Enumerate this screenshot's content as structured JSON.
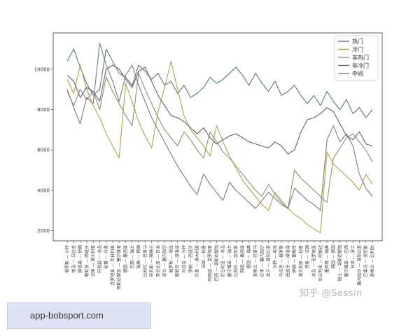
{
  "chart_data": {
    "type": "line",
    "ylim": [
      1500,
      11800
    ],
    "yticks": [
      2000,
      4000,
      6000,
      8000,
      10000
    ],
    "legend_position": "top-right",
    "grid": false,
    "categories": [
      "俄罗斯 — 沙特",
      "埃及 — 乌拉圭",
      "摩洛哥 — 伊朗",
      "葡萄牙 — 西班牙",
      "法国 — 澳大利亚",
      "阿根廷 — 冰岛",
      "秘鲁 — 丹麦",
      "克罗地亚 — 尼日利亚",
      "哥斯达黎加 — 塞尔维亚",
      "德国 — 墨西哥",
      "巴西 — 瑞士",
      "瑞典 — 韩国",
      "比利时 — 巴拿马",
      "突尼斯 — 英格兰",
      "哥伦比亚 — 日本",
      "波兰 — 塞内加尔",
      "俄罗斯 — 埃及",
      "葡萄牙 — 摩洛哥",
      "乌拉圭 — 沙特",
      "伊朗 — 西班牙",
      "丹麦 — 澳大利亚",
      "法国 — 秘鲁",
      "阿根廷 — 克罗地亚",
      "巴西 — 哥斯达黎加",
      "尼日利亚 — 冰岛",
      "塞尔维亚 — 瑞士",
      "比利时 — 突尼斯",
      "韩国 — 墨西哥",
      "德国 — 瑞典",
      "英格兰 — 巴拿马",
      "日本 — 塞内加尔",
      "波兰 — 哥伦比亚",
      "沙特 — 埃及",
      "乌拉圭 — 俄罗斯",
      "西班牙 — 摩洛哥",
      "伊朗 — 葡萄牙",
      "澳大利亚 — 秘鲁",
      "丹麦 — 法国",
      "冰岛 — 克罗地亚",
      "尼日利亚 — 阿根廷",
      "墨西哥 — 瑞典",
      "韩国 — 德国",
      "瑞士 — 哥斯达黎加",
      "塞尔维亚 — 巴西",
      "日本 — 波兰",
      "塞内加尔 — 哥伦比亚",
      "巴拿马 — 突尼斯",
      "英格兰 — 比利时"
    ],
    "series": [
      {
        "name": "热门",
        "color": "#5a7a78",
        "values": [
          10400,
          11000,
          10100,
          9300,
          8700,
          9000,
          11000,
          10400,
          9800,
          9600,
          9200,
          10200,
          9900,
          9500,
          9800,
          9200,
          9400,
          8800,
          9200,
          8600,
          8800,
          9100,
          9600,
          9300,
          9500,
          9800,
          10100,
          9700,
          9200,
          9800,
          9300,
          8900,
          9400,
          8700,
          8900,
          9200,
          8700,
          8300,
          8700,
          8200,
          8900,
          8400,
          8000,
          8500,
          7800,
          8100,
          7600,
          8000
        ]
      },
      {
        "name": "冷门",
        "color": "#b3a14a",
        "values": [
          9500,
          8800,
          10200,
          9000,
          8200,
          7600,
          6800,
          6200,
          5600,
          9300,
          8400,
          7400,
          6700,
          6100,
          7900,
          9100,
          10400,
          9000,
          7700,
          7000,
          6600,
          6200,
          5700,
          7200,
          6400,
          5700,
          5100,
          4500,
          4100,
          3700,
          3300,
          3000,
          3900,
          3500,
          3100,
          2800,
          2600,
          2300,
          2100,
          1900,
          5900,
          5300,
          5000,
          4700,
          4400,
          4000,
          4800,
          4300
        ]
      },
      {
        "name": "非热门",
        "color": "#8a9470",
        "values": [
          8900,
          8200,
          9000,
          8500,
          8900,
          8000,
          9600,
          8900,
          8300,
          7700,
          7200,
          9800,
          9000,
          8300,
          7600,
          7000,
          6600,
          6200,
          6900,
          6500,
          6000,
          5600,
          6900,
          6400,
          5900,
          5600,
          5200,
          4800,
          4400,
          4000,
          3700,
          4300,
          3800,
          3400,
          3100,
          5000,
          4600,
          4300,
          4000,
          3700,
          3400,
          5600,
          6100,
          6600,
          6800,
          6400,
          6000,
          5400
        ]
      },
      {
        "name": "非冷门",
        "color": "#6a5a72",
        "values": [
          9700,
          9400,
          8600,
          9100,
          8900,
          8400,
          10000,
          10200,
          10000,
          9500,
          9100,
          9900,
          10100,
          9400,
          8700,
          8200,
          7700,
          7600,
          7400,
          7100,
          6800,
          7100,
          6600,
          6300,
          6500,
          6700,
          6800,
          6600,
          6400,
          6300,
          6200,
          6100,
          6400,
          6200,
          5800,
          6000,
          6900,
          7500,
          7600,
          7800,
          8100,
          7900,
          7300,
          6700,
          6500,
          6900,
          6300,
          6200
        ]
      },
      {
        "name": "中间",
        "color": "#7a7a85",
        "values": [
          9000,
          8100,
          7300,
          8600,
          8300,
          11300,
          10200,
          9400,
          8400,
          9700,
          10200,
          9200,
          8400,
          7600,
          7000,
          6400,
          5800,
          5200,
          4700,
          4200,
          3800,
          4800,
          4300,
          3900,
          3500,
          4400,
          4000,
          3700,
          3400,
          3100,
          3500,
          3900,
          3600,
          3300,
          3100,
          4100,
          3800,
          3500,
          3300,
          3000,
          6500,
          7200,
          6400,
          6800,
          6200,
          4800,
          4100,
          3700
        ]
      }
    ]
  },
  "watermark": "知乎 @Sessin",
  "footer_text": "app-bobsport.com"
}
